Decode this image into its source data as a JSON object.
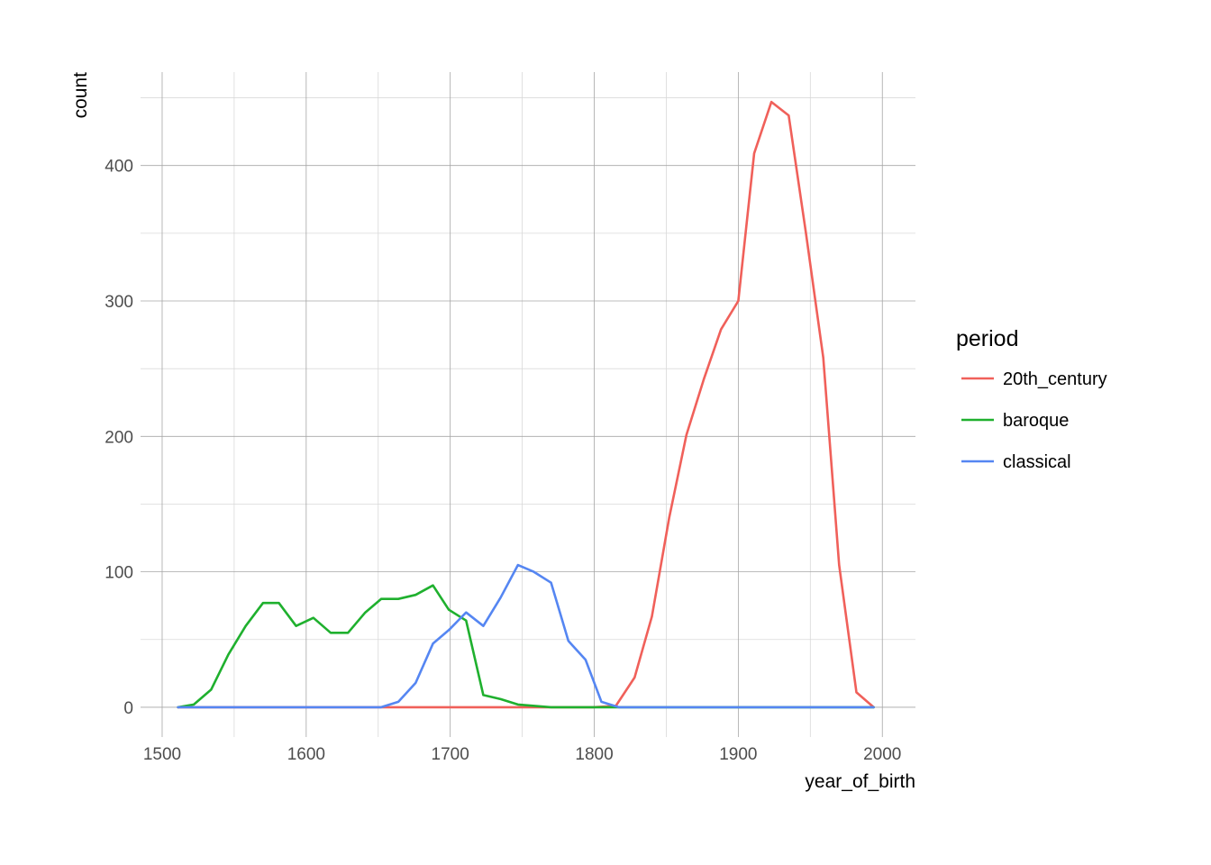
{
  "chart_data": {
    "type": "line",
    "xlabel": "year_of_birth",
    "ylabel": "count",
    "xlim": [
      1485,
      2023
    ],
    "ylim": [
      -22,
      469
    ],
    "x_ticks": [
      1500,
      1600,
      1700,
      1800,
      1900,
      2000
    ],
    "y_ticks": [
      0,
      100,
      200,
      300,
      400
    ],
    "grid": true,
    "legend": {
      "title": "period",
      "position": "right"
    },
    "series": [
      {
        "name": "20th_century",
        "color": "#F0605A",
        "x": [
          1511,
          1523,
          1535,
          1547,
          1559,
          1571,
          1583,
          1595,
          1607,
          1619,
          1631,
          1643,
          1655,
          1667,
          1679,
          1691,
          1703,
          1715,
          1727,
          1739,
          1751,
          1763,
          1775,
          1787,
          1799,
          1815,
          1828,
          1840,
          1852,
          1864,
          1876,
          1888,
          1900,
          1911,
          1923,
          1935,
          1947,
          1959,
          1970,
          1982,
          1994
        ],
        "values": [
          0,
          0,
          0,
          0,
          0,
          0,
          0,
          0,
          0,
          0,
          0,
          0,
          0,
          0,
          0,
          0,
          0,
          0,
          0,
          0,
          0,
          0,
          0,
          0,
          0,
          1,
          22,
          67,
          140,
          201,
          242,
          279,
          300,
          409,
          447,
          437,
          350,
          258,
          105,
          11,
          0
        ]
      },
      {
        "name": "baroque",
        "color": "#1FB02E",
        "x": [
          1511,
          1522,
          1534,
          1546,
          1558,
          1570,
          1581,
          1593,
          1605,
          1617,
          1629,
          1641,
          1652,
          1664,
          1676,
          1688,
          1699,
          1711,
          1723,
          1735,
          1747,
          1770,
          1805,
          1994
        ],
        "values": [
          0,
          2,
          13,
          39,
          60,
          77,
          77,
          60,
          66,
          55,
          55,
          70,
          80,
          80,
          83,
          90,
          72,
          64,
          9,
          6,
          2,
          0,
          0,
          0
        ]
      },
      {
        "name": "classical",
        "color": "#5586F2",
        "x": [
          1511,
          1652,
          1664,
          1676,
          1688,
          1699,
          1711,
          1723,
          1735,
          1747,
          1758,
          1770,
          1782,
          1794,
          1805,
          1817,
          1994
        ],
        "values": [
          0,
          0,
          4,
          18,
          47,
          57,
          70,
          60,
          81,
          105,
          100,
          92,
          49,
          35,
          4,
          0,
          0
        ]
      }
    ]
  }
}
